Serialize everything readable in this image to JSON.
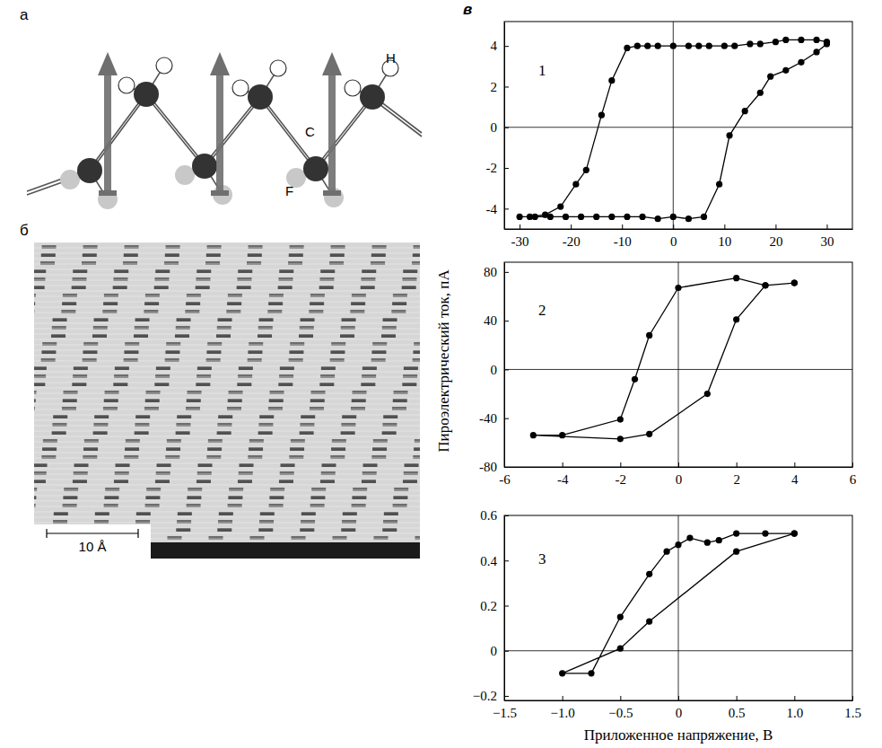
{
  "figure": {
    "panel_labels": [
      "а",
      "б",
      "в"
    ],
    "ylabel": "Пироэлектрический ток, пА",
    "xlabel": "Приложенное напряжение, В"
  },
  "diagram": {
    "atoms": [
      "H",
      "C",
      "F"
    ]
  },
  "image": {
    "scale_bar": "10 Å"
  },
  "chart_data": [
    {
      "type": "line",
      "title": "1",
      "color": "#000000",
      "marker": "circle",
      "line_style": "solid",
      "x": [
        30,
        28,
        25,
        22,
        20,
        17,
        15,
        12,
        10,
        7,
        5,
        3,
        0,
        -3,
        -5,
        -7,
        -9,
        -12,
        -14,
        -17,
        -19,
        -22,
        -25,
        -28,
        -30,
        -27,
        -24,
        -21,
        -18,
        -15,
        -12,
        -9,
        -6,
        -3,
        0,
        3,
        6,
        9,
        11,
        14,
        17,
        19,
        22,
        25,
        28,
        30
      ],
      "values": [
        4.2,
        4.3,
        4.3,
        4.3,
        4.2,
        4.1,
        4.1,
        4.0,
        4.0,
        4.0,
        4.0,
        4.0,
        4.0,
        4.0,
        4.0,
        4.0,
        3.9,
        2.3,
        0.6,
        -2.1,
        -2.8,
        -3.9,
        -4.3,
        -4.4,
        -4.4,
        -4.4,
        -4.4,
        -4.4,
        -4.4,
        -4.4,
        -4.4,
        -4.4,
        -4.4,
        -4.5,
        -4.4,
        -4.5,
        -4.4,
        -2.8,
        -0.4,
        0.8,
        1.7,
        2.5,
        2.8,
        3.2,
        3.7,
        4.1
      ],
      "xlim": [
        -33,
        35
      ],
      "xticks": [
        -30,
        -20,
        -10,
        0,
        10,
        20,
        30
      ],
      "ylim": [
        -5,
        5.2
      ],
      "yticks": [
        -4,
        -2,
        0,
        2,
        4
      ]
    },
    {
      "type": "line",
      "title": "2",
      "color": "#000000",
      "marker": "circle",
      "line_style": "solid",
      "x": [
        4,
        3,
        2,
        0,
        -1,
        -1.5,
        -2,
        -4,
        -5,
        -2,
        -1,
        1,
        2,
        3,
        4
      ],
      "values": [
        71,
        69,
        75,
        67,
        28,
        -8,
        -41,
        -54,
        -54,
        -57,
        -53,
        -20,
        41,
        69,
        71
      ],
      "xlim": [
        -6,
        6
      ],
      "xticks": [
        -6,
        -4,
        -2,
        0,
        2,
        4,
        6
      ],
      "ylim": [
        -80,
        88
      ],
      "yticks": [
        -80,
        -40,
        0,
        40,
        80
      ]
    },
    {
      "type": "line",
      "title": "3",
      "color": "#000000",
      "marker": "circle",
      "line_style": "solid",
      "x": [
        1,
        0.75,
        0.5,
        0.35,
        0.25,
        0.1,
        0,
        -0.1,
        -0.25,
        -0.5,
        -0.75,
        -1,
        -0.5,
        -0.25,
        0.5,
        1
      ],
      "values": [
        0.52,
        0.52,
        0.52,
        0.49,
        0.48,
        0.5,
        0.47,
        0.44,
        0.34,
        0.15,
        -0.1,
        -0.1,
        0.01,
        0.13,
        0.44,
        0.52
      ],
      "xlim": [
        -1.5,
        1.5
      ],
      "xticks": [
        {
          "value": -1.5,
          "label": "−1.5"
        },
        {
          "value": -1,
          "label": "−1.0"
        },
        {
          "value": -0.5,
          "label": "−0.5"
        },
        0,
        0.5,
        {
          "value": 1,
          "label": "1.0"
        },
        1.5
      ],
      "ylim": [
        -0.22,
        0.6
      ],
      "yticks": [
        {
          "value": -0.2,
          "label": "−0.2"
        },
        0,
        0.2,
        0.4,
        0.6
      ]
    }
  ]
}
